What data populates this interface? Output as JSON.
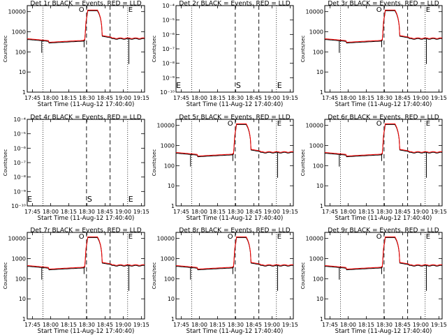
{
  "figure": {
    "time_axis_label": "Start Time (11-Aug-12 17:40:40)",
    "y_axis_label": "Counts/sec",
    "x_ticks": [
      "17:45",
      "18:00",
      "18:15",
      "18:30",
      "18:45",
      "19:00",
      "19:15"
    ]
  },
  "chart_data": [
    {
      "type": "line",
      "title": "Det 1r BLACK = Events, RED = LLD",
      "scale": "log",
      "ylim": [
        1,
        20000
      ],
      "y_ticks": [
        "1",
        "10",
        "100",
        "1000",
        "10000"
      ],
      "markers": [
        "O",
        "E"
      ],
      "series": [
        {
          "name": "Events",
          "color": "#000000"
        },
        {
          "name": "LLD",
          "color": "#ff0000"
        }
      ]
    },
    {
      "type": "line",
      "title": "Det 2r BLACK = Events, RED = LLD",
      "scale": "log_small",
      "ylim": [
        1e-10,
        0.0001
      ],
      "y_ticks": [
        "10⁻¹⁰",
        "10⁻⁹",
        "10⁻⁸",
        "10⁻⁷",
        "10⁻⁶",
        "10⁻⁵",
        "10⁻⁴"
      ],
      "markers": [
        "E",
        "S",
        "E"
      ],
      "empty": true,
      "series": []
    },
    {
      "type": "line",
      "title": "Det 3r BLACK = Events, RED = LLD",
      "scale": "log",
      "ylim": [
        1,
        20000
      ],
      "y_ticks": [
        "1",
        "10",
        "100",
        "1000",
        "10000"
      ],
      "markers": [
        "O",
        "E"
      ],
      "series": [
        {
          "name": "Events",
          "color": "#000000"
        },
        {
          "name": "LLD",
          "color": "#ff0000"
        }
      ]
    },
    {
      "type": "line",
      "title": "Det 4r BLACK = Events, RED = LLD",
      "scale": "log_small",
      "ylim": [
        1e-10,
        0.0001
      ],
      "y_ticks": [
        "10⁻¹⁰",
        "10⁻⁹",
        "10⁻⁸",
        "10⁻⁷",
        "10⁻⁶",
        "10⁻⁵",
        "10⁻⁴"
      ],
      "markers": [
        "E",
        "S",
        "E"
      ],
      "empty": true,
      "series": []
    },
    {
      "type": "line",
      "title": "Det 5r BLACK = Events, RED = LLD",
      "scale": "log",
      "ylim": [
        1,
        20000
      ],
      "y_ticks": [
        "1",
        "10",
        "100",
        "1000",
        "10000"
      ],
      "markers": [
        "O",
        "E"
      ],
      "series": [
        {
          "name": "Events",
          "color": "#000000"
        },
        {
          "name": "LLD",
          "color": "#ff0000"
        }
      ]
    },
    {
      "type": "line",
      "title": "Det 6r BLACK = Events, RED = LLD",
      "scale": "log",
      "ylim": [
        1,
        20000
      ],
      "y_ticks": [
        "1",
        "10",
        "100",
        "1000",
        "10000"
      ],
      "markers": [
        "O",
        "E"
      ],
      "series": [
        {
          "name": "Events",
          "color": "#000000"
        },
        {
          "name": "LLD",
          "color": "#ff0000"
        }
      ]
    },
    {
      "type": "line",
      "title": "Det 7r BLACK = Events, RED = LLD",
      "scale": "log",
      "ylim": [
        1,
        20000
      ],
      "y_ticks": [
        "1",
        "10",
        "100",
        "1000",
        "10000"
      ],
      "markers": [
        "O",
        "E"
      ],
      "series": [
        {
          "name": "Events",
          "color": "#000000"
        },
        {
          "name": "LLD",
          "color": "#ff0000"
        }
      ]
    },
    {
      "type": "line",
      "title": "Det 8r BLACK = Events, RED = LLD",
      "scale": "log",
      "ylim": [
        1,
        20000
      ],
      "y_ticks": [
        "1",
        "10",
        "100",
        "1000",
        "10000"
      ],
      "markers": [
        "O",
        "E"
      ],
      "series": [
        {
          "name": "Events",
          "color": "#000000"
        },
        {
          "name": "LLD",
          "color": "#ff0000"
        }
      ]
    },
    {
      "type": "line",
      "title": "Det 9r BLACK = Events, RED = LLD",
      "scale": "log",
      "ylim": [
        1,
        20000
      ],
      "y_ticks": [
        "1",
        "10",
        "100",
        "1000",
        "10000"
      ],
      "markers": [
        "O",
        "E"
      ],
      "series": [
        {
          "name": "Events",
          "color": "#000000"
        },
        {
          "name": "LLD",
          "color": "#ff0000"
        }
      ]
    }
  ]
}
